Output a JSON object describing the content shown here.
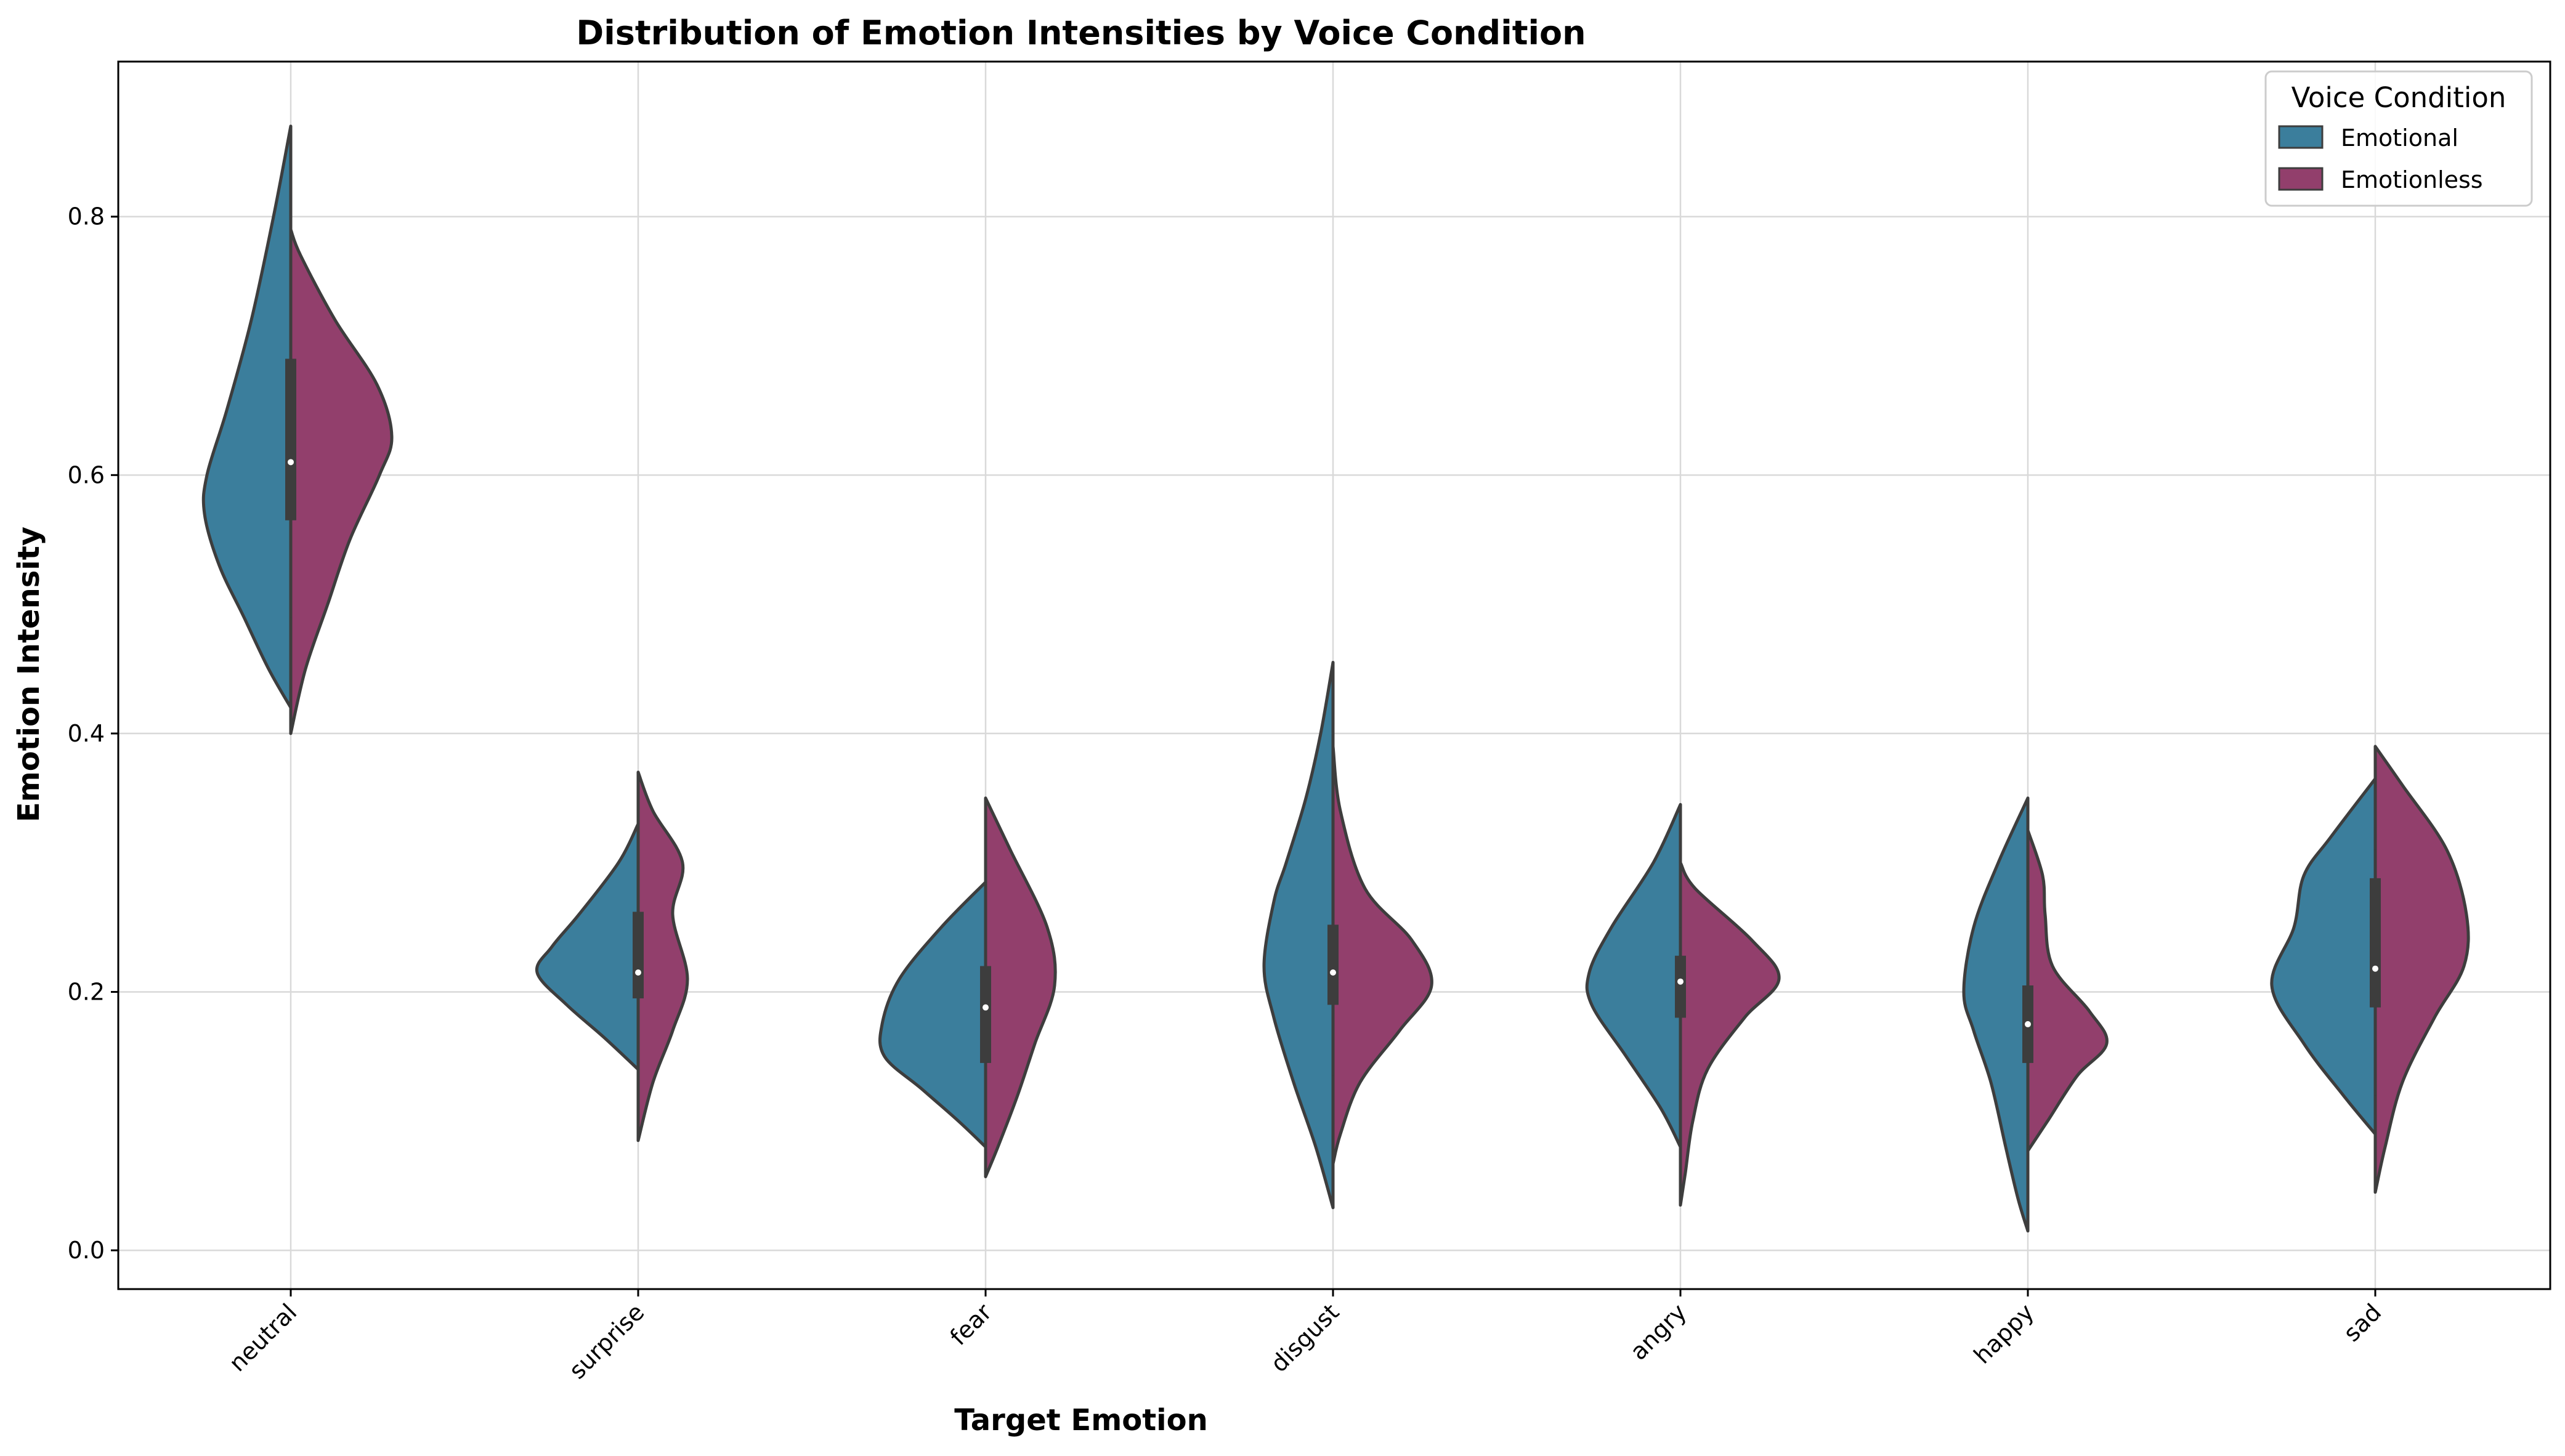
{
  "chart_data": {
    "type": "violin",
    "title": "Distribution of Emotion Intensities by Voice Condition",
    "xlabel": "Target Emotion",
    "ylabel": "Emotion Intensity",
    "categories": [
      "neutral",
      "surprise",
      "fear",
      "disgust",
      "angry",
      "happy",
      "sad"
    ],
    "ylim": [
      -0.03,
      0.92
    ],
    "yticks": [
      0.0,
      0.2,
      0.4,
      0.6,
      0.8
    ],
    "ytick_labels": [
      "0.0",
      "0.2",
      "0.4",
      "0.6",
      "0.8"
    ],
    "grid": true,
    "legend": {
      "title": "Voice Condition",
      "placement": "top-right"
    },
    "split": true,
    "series": [
      {
        "name": "Emotional",
        "color": "#3b7e9c",
        "violins": [
          {
            "profile": [
              [
                0.87,
                0.0
              ],
              [
                0.8,
                0.14
              ],
              [
                0.72,
                0.32
              ],
              [
                0.65,
                0.52
              ],
              [
                0.6,
                0.68
              ],
              [
                0.57,
                0.7
              ],
              [
                0.53,
                0.58
              ],
              [
                0.49,
                0.38
              ],
              [
                0.45,
                0.18
              ],
              [
                0.42,
                0.0
              ]
            ]
          },
          {
            "profile": [
              [
                0.33,
                0.0
              ],
              [
                0.3,
                0.16
              ],
              [
                0.26,
                0.48
              ],
              [
                0.235,
                0.7
              ],
              [
                0.215,
                0.82
              ],
              [
                0.19,
                0.58
              ],
              [
                0.165,
                0.28
              ],
              [
                0.14,
                0.0
              ]
            ]
          },
          {
            "profile": [
              [
                0.285,
                0.0
              ],
              [
                0.25,
                0.36
              ],
              [
                0.21,
                0.7
              ],
              [
                0.175,
                0.84
              ],
              [
                0.15,
                0.82
              ],
              [
                0.125,
                0.52
              ],
              [
                0.1,
                0.22
              ],
              [
                0.08,
                0.0
              ]
            ]
          },
          {
            "profile": [
              [
                0.455,
                0.0
              ],
              [
                0.4,
                0.1
              ],
              [
                0.35,
                0.22
              ],
              [
                0.3,
                0.38
              ],
              [
                0.27,
                0.48
              ],
              [
                0.22,
                0.56
              ],
              [
                0.18,
                0.48
              ],
              [
                0.13,
                0.32
              ],
              [
                0.08,
                0.14
              ],
              [
                0.033,
                0.0
              ]
            ]
          },
          {
            "profile": [
              [
                0.345,
                0.0
              ],
              [
                0.3,
                0.22
              ],
              [
                0.25,
                0.56
              ],
              [
                0.215,
                0.74
              ],
              [
                0.19,
                0.72
              ],
              [
                0.15,
                0.44
              ],
              [
                0.11,
                0.16
              ],
              [
                0.08,
                0.0
              ]
            ]
          },
          {
            "profile": [
              [
                0.35,
                0.0
              ],
              [
                0.3,
                0.24
              ],
              [
                0.25,
                0.44
              ],
              [
                0.2,
                0.52
              ],
              [
                0.17,
                0.44
              ],
              [
                0.13,
                0.3
              ],
              [
                0.08,
                0.18
              ],
              [
                0.04,
                0.08
              ],
              [
                0.015,
                0.0
              ]
            ]
          },
          {
            "profile": [
              [
                0.365,
                0.0
              ],
              [
                0.32,
                0.36
              ],
              [
                0.29,
                0.58
              ],
              [
                0.25,
                0.66
              ],
              [
                0.205,
                0.84
              ],
              [
                0.16,
                0.58
              ],
              [
                0.12,
                0.26
              ],
              [
                0.09,
                0.0
              ]
            ]
          }
        ]
      },
      {
        "name": "Emotionless",
        "color": "#923f6c",
        "violins": [
          {
            "profile": [
              [
                0.79,
                0.0
              ],
              [
                0.77,
                0.08
              ],
              [
                0.72,
                0.36
              ],
              [
                0.67,
                0.7
              ],
              [
                0.63,
                0.82
              ],
              [
                0.6,
                0.72
              ],
              [
                0.55,
                0.48
              ],
              [
                0.5,
                0.3
              ],
              [
                0.45,
                0.12
              ],
              [
                0.4,
                0.0
              ]
            ]
          },
          {
            "profile": [
              [
                0.37,
                0.0
              ],
              [
                0.34,
                0.12
              ],
              [
                0.3,
                0.36
              ],
              [
                0.26,
                0.28
              ],
              [
                0.21,
                0.4
              ],
              [
                0.17,
                0.28
              ],
              [
                0.13,
                0.12
              ],
              [
                0.085,
                0.0
              ]
            ]
          },
          {
            "profile": [
              [
                0.35,
                0.0
              ],
              [
                0.31,
                0.2
              ],
              [
                0.25,
                0.5
              ],
              [
                0.205,
                0.56
              ],
              [
                0.16,
                0.4
              ],
              [
                0.12,
                0.26
              ],
              [
                0.08,
                0.1
              ],
              [
                0.057,
                0.0
              ]
            ]
          },
          {
            "profile": [
              [
                0.39,
                0.0
              ],
              [
                0.34,
                0.06
              ],
              [
                0.28,
                0.26
              ],
              [
                0.24,
                0.64
              ],
              [
                0.205,
                0.8
              ],
              [
                0.17,
                0.54
              ],
              [
                0.13,
                0.22
              ],
              [
                0.09,
                0.06
              ],
              [
                0.067,
                0.0
              ]
            ]
          },
          {
            "profile": [
              [
                0.3,
                0.0
              ],
              [
                0.28,
                0.12
              ],
              [
                0.24,
                0.58
              ],
              [
                0.21,
                0.8
              ],
              [
                0.18,
                0.52
              ],
              [
                0.14,
                0.22
              ],
              [
                0.1,
                0.1
              ],
              [
                0.06,
                0.04
              ],
              [
                0.035,
                0.0
              ]
            ]
          },
          {
            "profile": [
              [
                0.325,
                0.0
              ],
              [
                0.29,
                0.12
              ],
              [
                0.26,
                0.14
              ],
              [
                0.22,
                0.2
              ],
              [
                0.185,
                0.5
              ],
              [
                0.16,
                0.64
              ],
              [
                0.135,
                0.4
              ],
              [
                0.1,
                0.16
              ],
              [
                0.077,
                0.0
              ]
            ]
          },
          {
            "profile": [
              [
                0.39,
                0.0
              ],
              [
                0.36,
                0.22
              ],
              [
                0.31,
                0.58
              ],
              [
                0.26,
                0.74
              ],
              [
                0.22,
                0.72
              ],
              [
                0.18,
                0.48
              ],
              [
                0.13,
                0.22
              ],
              [
                0.08,
                0.08
              ],
              [
                0.045,
                0.0
              ]
            ]
          }
        ]
      }
    ],
    "boxplots": [
      {
        "q1": 0.565,
        "median": 0.61,
        "q3": 0.69,
        "whisker_low": 0.49,
        "whisker_high": 0.765
      },
      {
        "q1": 0.195,
        "median": 0.215,
        "q3": 0.262,
        "whisker_low": 0.14,
        "whisker_high": 0.33
      },
      {
        "q1": 0.145,
        "median": 0.188,
        "q3": 0.22,
        "whisker_low": 0.08,
        "whisker_high": 0.285
      },
      {
        "q1": 0.19,
        "median": 0.215,
        "q3": 0.252,
        "whisker_low": 0.135,
        "whisker_high": 0.39
      },
      {
        "q1": 0.18,
        "median": 0.208,
        "q3": 0.228,
        "whisker_low": 0.14,
        "whisker_high": 0.25
      },
      {
        "q1": 0.145,
        "median": 0.175,
        "q3": 0.205,
        "whisker_low": 0.09,
        "whisker_high": 0.27
      },
      {
        "q1": 0.188,
        "median": 0.218,
        "q3": 0.288,
        "whisker_low": 0.12,
        "whisker_high": 0.31
      }
    ]
  }
}
